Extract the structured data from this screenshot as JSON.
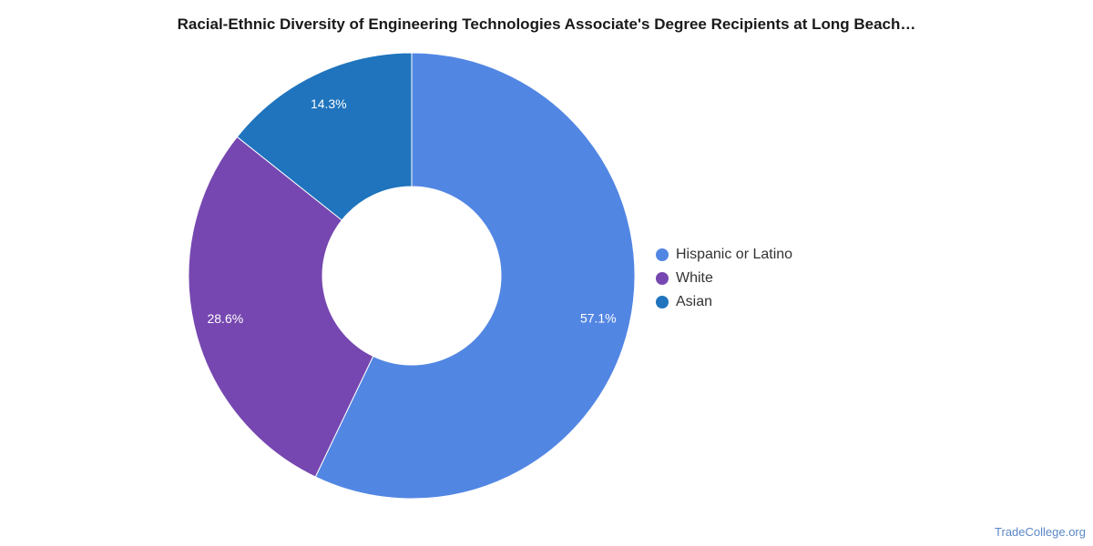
{
  "chart_data": {
    "type": "pie",
    "title": "Racial-Ethnic Diversity of Engineering Technologies Associate's Degree Recipients at Long Beach…",
    "donut": true,
    "slices": [
      {
        "label": "Hispanic or Latino",
        "value": 57.1,
        "display": "57.1%",
        "color": "#5286e3"
      },
      {
        "label": "White",
        "value": 28.6,
        "display": "28.6%",
        "color": "#7647b0"
      },
      {
        "label": "Asian",
        "value": 14.3,
        "display": "14.3%",
        "color": "#1f74bd"
      }
    ],
    "legend_position": "right"
  },
  "watermark": "TradeCollege.org"
}
